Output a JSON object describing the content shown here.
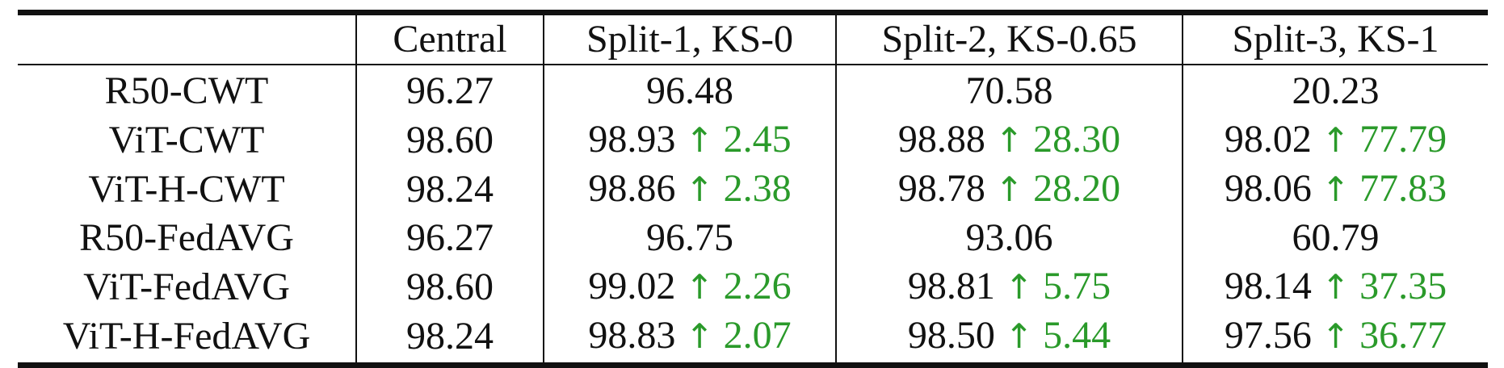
{
  "table": {
    "columns": [
      "",
      "Central",
      "Split-1, KS-0",
      "Split-2, KS-0.65",
      "Split-3, KS-1"
    ],
    "rows": [
      {
        "label": "R50-CWT",
        "central": "96.27",
        "cells": [
          {
            "value": "96.48",
            "gain": ""
          },
          {
            "value": "70.58",
            "gain": ""
          },
          {
            "value": "20.23",
            "gain": ""
          }
        ]
      },
      {
        "label": "ViT-CWT",
        "central": "98.60",
        "cells": [
          {
            "value": "98.93",
            "gain": "2.45"
          },
          {
            "value": "98.88",
            "gain": "28.30"
          },
          {
            "value": "98.02",
            "gain": "77.79"
          }
        ]
      },
      {
        "label": "ViT-H-CWT",
        "central": "98.24",
        "cells": [
          {
            "value": "98.86",
            "gain": "2.38"
          },
          {
            "value": "98.78",
            "gain": "28.20"
          },
          {
            "value": "98.06",
            "gain": "77.83"
          }
        ]
      },
      {
        "label": "R50-FedAVG",
        "central": "96.27",
        "cells": [
          {
            "value": "96.75",
            "gain": ""
          },
          {
            "value": "93.06",
            "gain": ""
          },
          {
            "value": "60.79",
            "gain": ""
          }
        ]
      },
      {
        "label": "ViT-FedAVG",
        "central": "98.60",
        "cells": [
          {
            "value": "99.02",
            "gain": "2.26"
          },
          {
            "value": "98.81",
            "gain": "5.75"
          },
          {
            "value": "98.14",
            "gain": "37.35"
          }
        ]
      },
      {
        "label": "ViT-H-FedAVG",
        "central": "98.24",
        "cells": [
          {
            "value": "98.83",
            "gain": "2.07"
          },
          {
            "value": "98.50",
            "gain": "5.44"
          },
          {
            "value": "97.56",
            "gain": "36.77"
          }
        ]
      }
    ],
    "arrow_glyph": "↑",
    "colors": {
      "text": "#111111",
      "gain": "#2a9a2a"
    }
  }
}
